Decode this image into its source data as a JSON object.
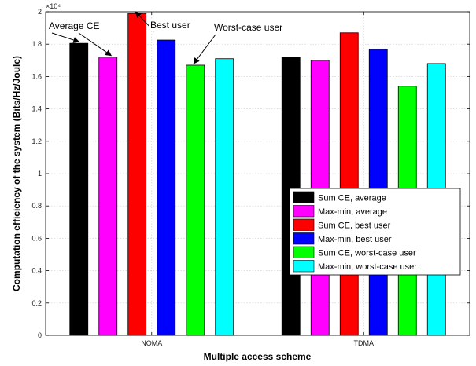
{
  "chart_data": {
    "type": "bar",
    "categories": [
      "NOMA",
      "TDMA"
    ],
    "series": [
      {
        "name": "Sum CE, average",
        "color": "#000000",
        "values": [
          18050,
          17200
        ]
      },
      {
        "name": "Max-min, average",
        "color": "#ff00ff",
        "values": [
          17200,
          17000
        ]
      },
      {
        "name": "Sum CE, best  user",
        "color": "#ff0000",
        "values": [
          19900,
          18700
        ]
      },
      {
        "name": "Max-min, best  user",
        "color": "#0000ff",
        "values": [
          18250,
          17700
        ]
      },
      {
        "name": "Sum CE, worst-case user",
        "color": "#00ff00",
        "values": [
          16700,
          15400
        ]
      },
      {
        "name": "Max-min, worst-case user",
        "color": "#00ffff",
        "values": [
          17100,
          16800
        ]
      }
    ],
    "ylim": [
      0,
      20000
    ],
    "yticks": [
      0,
      2000,
      4000,
      6000,
      8000,
      10000,
      12000,
      14000,
      16000,
      18000,
      20000
    ],
    "ytick_labels": [
      "0",
      "0.2",
      "0.4",
      "0.6",
      "0.8",
      "1",
      "1.2",
      "1.4",
      "1.6",
      "1.8",
      "2"
    ],
    "y_exponent_label": "×10⁴",
    "xlabel": "Multiple access scheme",
    "ylabel": "Computation efficiency of the system (Bits/Hz/Joule)",
    "grid": true,
    "legend_position": "lower-right",
    "annotations": [
      {
        "text": "Average CE",
        "target_series": 1
      },
      {
        "text": "Best user",
        "target_series": 2
      },
      {
        "text": "Worst-case user",
        "target_series": 4
      }
    ]
  }
}
